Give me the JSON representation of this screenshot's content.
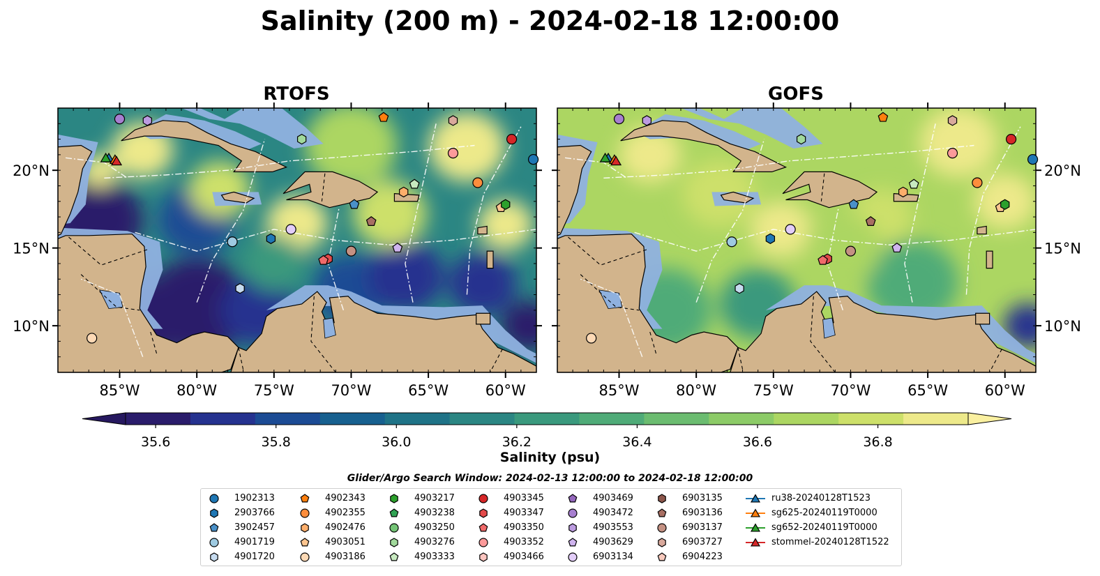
{
  "title": "Salinity (200 m) - 2024-02-18 12:00:00",
  "panels": [
    {
      "title": "RTOFS"
    },
    {
      "title": "GOFS"
    }
  ],
  "map": {
    "lon_range": [
      -89,
      -58
    ],
    "lat_range": [
      7,
      24
    ],
    "lon_ticks": [
      "85°W",
      "80°W",
      "75°W",
      "70°W",
      "65°W",
      "60°W"
    ],
    "lon_tick_values": [
      -85,
      -80,
      -75,
      -70,
      -65,
      -60
    ],
    "lat_ticks": [
      "10°N",
      "15°N",
      "20°N"
    ],
    "lat_tick_values": [
      10,
      15,
      20
    ],
    "land_color": "#d2b48c",
    "shelf_color": "#8fb1df",
    "eez_line_color": "#ffffff"
  },
  "colorbar": {
    "label": "Salinity (psu)",
    "ticks": [
      "35.6",
      "35.8",
      "36.0",
      "36.2",
      "36.4",
      "36.6",
      "36.8"
    ],
    "tick_values": [
      35.6,
      35.8,
      36.0,
      36.2,
      36.4,
      36.6,
      36.8
    ],
    "range": [
      35.55,
      36.95
    ],
    "step": 0.1,
    "colors": [
      "#2a1c6b",
      "#25328f",
      "#1b4b94",
      "#17608f",
      "#1f7387",
      "#2b8683",
      "#3a997d",
      "#4fab78",
      "#6bbc70",
      "#8ccb67",
      "#acd662",
      "#cde06a",
      "#ede98a"
    ],
    "extend_low_color": "#26185f",
    "extend_high_color": "#faf0a0"
  },
  "search_window": "Glider/Argo Search Window: 2024-02-13 12:00:00 to 2024-02-18 12:00:00",
  "legend": [
    {
      "label": "1902313",
      "marker": "circle",
      "color": "#1f77b4"
    },
    {
      "label": "2903766",
      "marker": "hexagon",
      "color": "#1f77b4"
    },
    {
      "label": "3902457",
      "marker": "pentagon",
      "color": "#4a90c8"
    },
    {
      "label": "4901719",
      "marker": "circle",
      "color": "#9ecae1"
    },
    {
      "label": "4901720",
      "marker": "hexagon",
      "color": "#c6dbef"
    },
    {
      "label": "4902343",
      "marker": "pentagon",
      "color": "#ff7f0e"
    },
    {
      "label": "4902355",
      "marker": "circle",
      "color": "#fd8d3c"
    },
    {
      "label": "4902476",
      "marker": "hexagon",
      "color": "#fdae6b"
    },
    {
      "label": "4903051",
      "marker": "pentagon",
      "color": "#fdc58f"
    },
    {
      "label": "4903186",
      "marker": "circle",
      "color": "#fdd9b5"
    },
    {
      "label": "4903217",
      "marker": "hexagon",
      "color": "#2ca02c"
    },
    {
      "label": "4903238",
      "marker": "pentagon",
      "color": "#31a354"
    },
    {
      "label": "4903250",
      "marker": "circle",
      "color": "#74c476"
    },
    {
      "label": "4903276",
      "marker": "hexagon",
      "color": "#a1d99b"
    },
    {
      "label": "4903333",
      "marker": "pentagon",
      "color": "#c7e9c0"
    },
    {
      "label": "4903345",
      "marker": "circle",
      "color": "#d62728"
    },
    {
      "label": "4903347",
      "marker": "hexagon",
      "color": "#e34a4a"
    },
    {
      "label": "4903350",
      "marker": "pentagon",
      "color": "#f06a6a"
    },
    {
      "label": "4903352",
      "marker": "circle",
      "color": "#fc9a9a"
    },
    {
      "label": "4903466",
      "marker": "hexagon",
      "color": "#fcc5c0"
    },
    {
      "label": "4903469",
      "marker": "pentagon",
      "color": "#9467bd"
    },
    {
      "label": "4903472",
      "marker": "circle",
      "color": "#a77fd0"
    },
    {
      "label": "4903553",
      "marker": "hexagon",
      "color": "#bc9be0"
    },
    {
      "label": "4903629",
      "marker": "pentagon",
      "color": "#cfb4ee"
    },
    {
      "label": "6903134",
      "marker": "circle",
      "color": "#e2cdf8"
    },
    {
      "label": "6903135",
      "marker": "hexagon",
      "color": "#8c564b"
    },
    {
      "label": "6903136",
      "marker": "pentagon",
      "color": "#a86f63"
    },
    {
      "label": "6903137",
      "marker": "circle",
      "color": "#c49183"
    },
    {
      "label": "6903727",
      "marker": "hexagon",
      "color": "#d9a99c"
    },
    {
      "label": "6904223",
      "marker": "pentagon",
      "color": "#f7c9bd"
    },
    {
      "label": "ru38-20240128T1523",
      "marker": "triangle-line",
      "color": "#1f77b4"
    },
    {
      "label": "sg625-20240119T0000",
      "marker": "triangle-line",
      "color": "#ff7f0e"
    },
    {
      "label": "sg652-20240119T0000",
      "marker": "triangle-line",
      "color": "#2ca02c"
    },
    {
      "label": "stommel-20240128T1522",
      "marker": "triangle-line",
      "color": "#d62728"
    }
  ],
  "observations": [
    {
      "id": "1902313",
      "lon": -58.2,
      "lat": 20.7
    },
    {
      "id": "2903766",
      "lon": -75.2,
      "lat": 15.6
    },
    {
      "id": "3902457",
      "lon": -69.8,
      "lat": 17.8
    },
    {
      "id": "4901719",
      "lon": -77.7,
      "lat": 15.4
    },
    {
      "id": "4901720",
      "lon": -77.2,
      "lat": 12.4
    },
    {
      "id": "4902343",
      "lon": -67.9,
      "lat": 23.4
    },
    {
      "id": "4902355",
      "lon": -61.8,
      "lat": 19.2
    },
    {
      "id": "4902476",
      "lon": -66.6,
      "lat": 18.6
    },
    {
      "id": "4903051",
      "lon": -60.3,
      "lat": 17.6
    },
    {
      "id": "4903186",
      "lon": -86.8,
      "lat": 9.2
    },
    {
      "id": "4903217",
      "lon": -60.0,
      "lat": 17.8
    },
    {
      "id": "4903333",
      "lon": -65.9,
      "lat": 19.1
    },
    {
      "id": "4903276",
      "lon": -73.2,
      "lat": 22.0
    },
    {
      "id": "4903345",
      "lon": -59.6,
      "lat": 22.0
    },
    {
      "id": "4903347",
      "lon": -71.5,
      "lat": 14.3
    },
    {
      "id": "4903350",
      "lon": -71.8,
      "lat": 14.2
    },
    {
      "id": "4903352",
      "lon": -63.4,
      "lat": 21.1
    },
    {
      "id": "4903472",
      "lon": -85.0,
      "lat": 23.3
    },
    {
      "id": "4903553",
      "lon": -83.2,
      "lat": 23.2
    },
    {
      "id": "4903629",
      "lon": -67.0,
      "lat": 15.0
    },
    {
      "id": "6903134",
      "lon": -73.9,
      "lat": 16.2
    },
    {
      "id": "6903136",
      "lon": -68.7,
      "lat": 16.7
    },
    {
      "id": "6903137",
      "lon": -70.0,
      "lat": 14.8
    },
    {
      "id": "6903727",
      "lon": -63.4,
      "lat": 23.2
    },
    {
      "id": "ru38-20240128T1523",
      "lon": -85.7,
      "lat": 20.8
    },
    {
      "id": "sg625-20240119T0000",
      "lon": -85.3,
      "lat": 20.7
    },
    {
      "id": "sg652-20240119T0000",
      "lon": -85.9,
      "lat": 20.8
    },
    {
      "id": "stommel-20240128T1522",
      "lon": -85.2,
      "lat": 20.6
    }
  ]
}
